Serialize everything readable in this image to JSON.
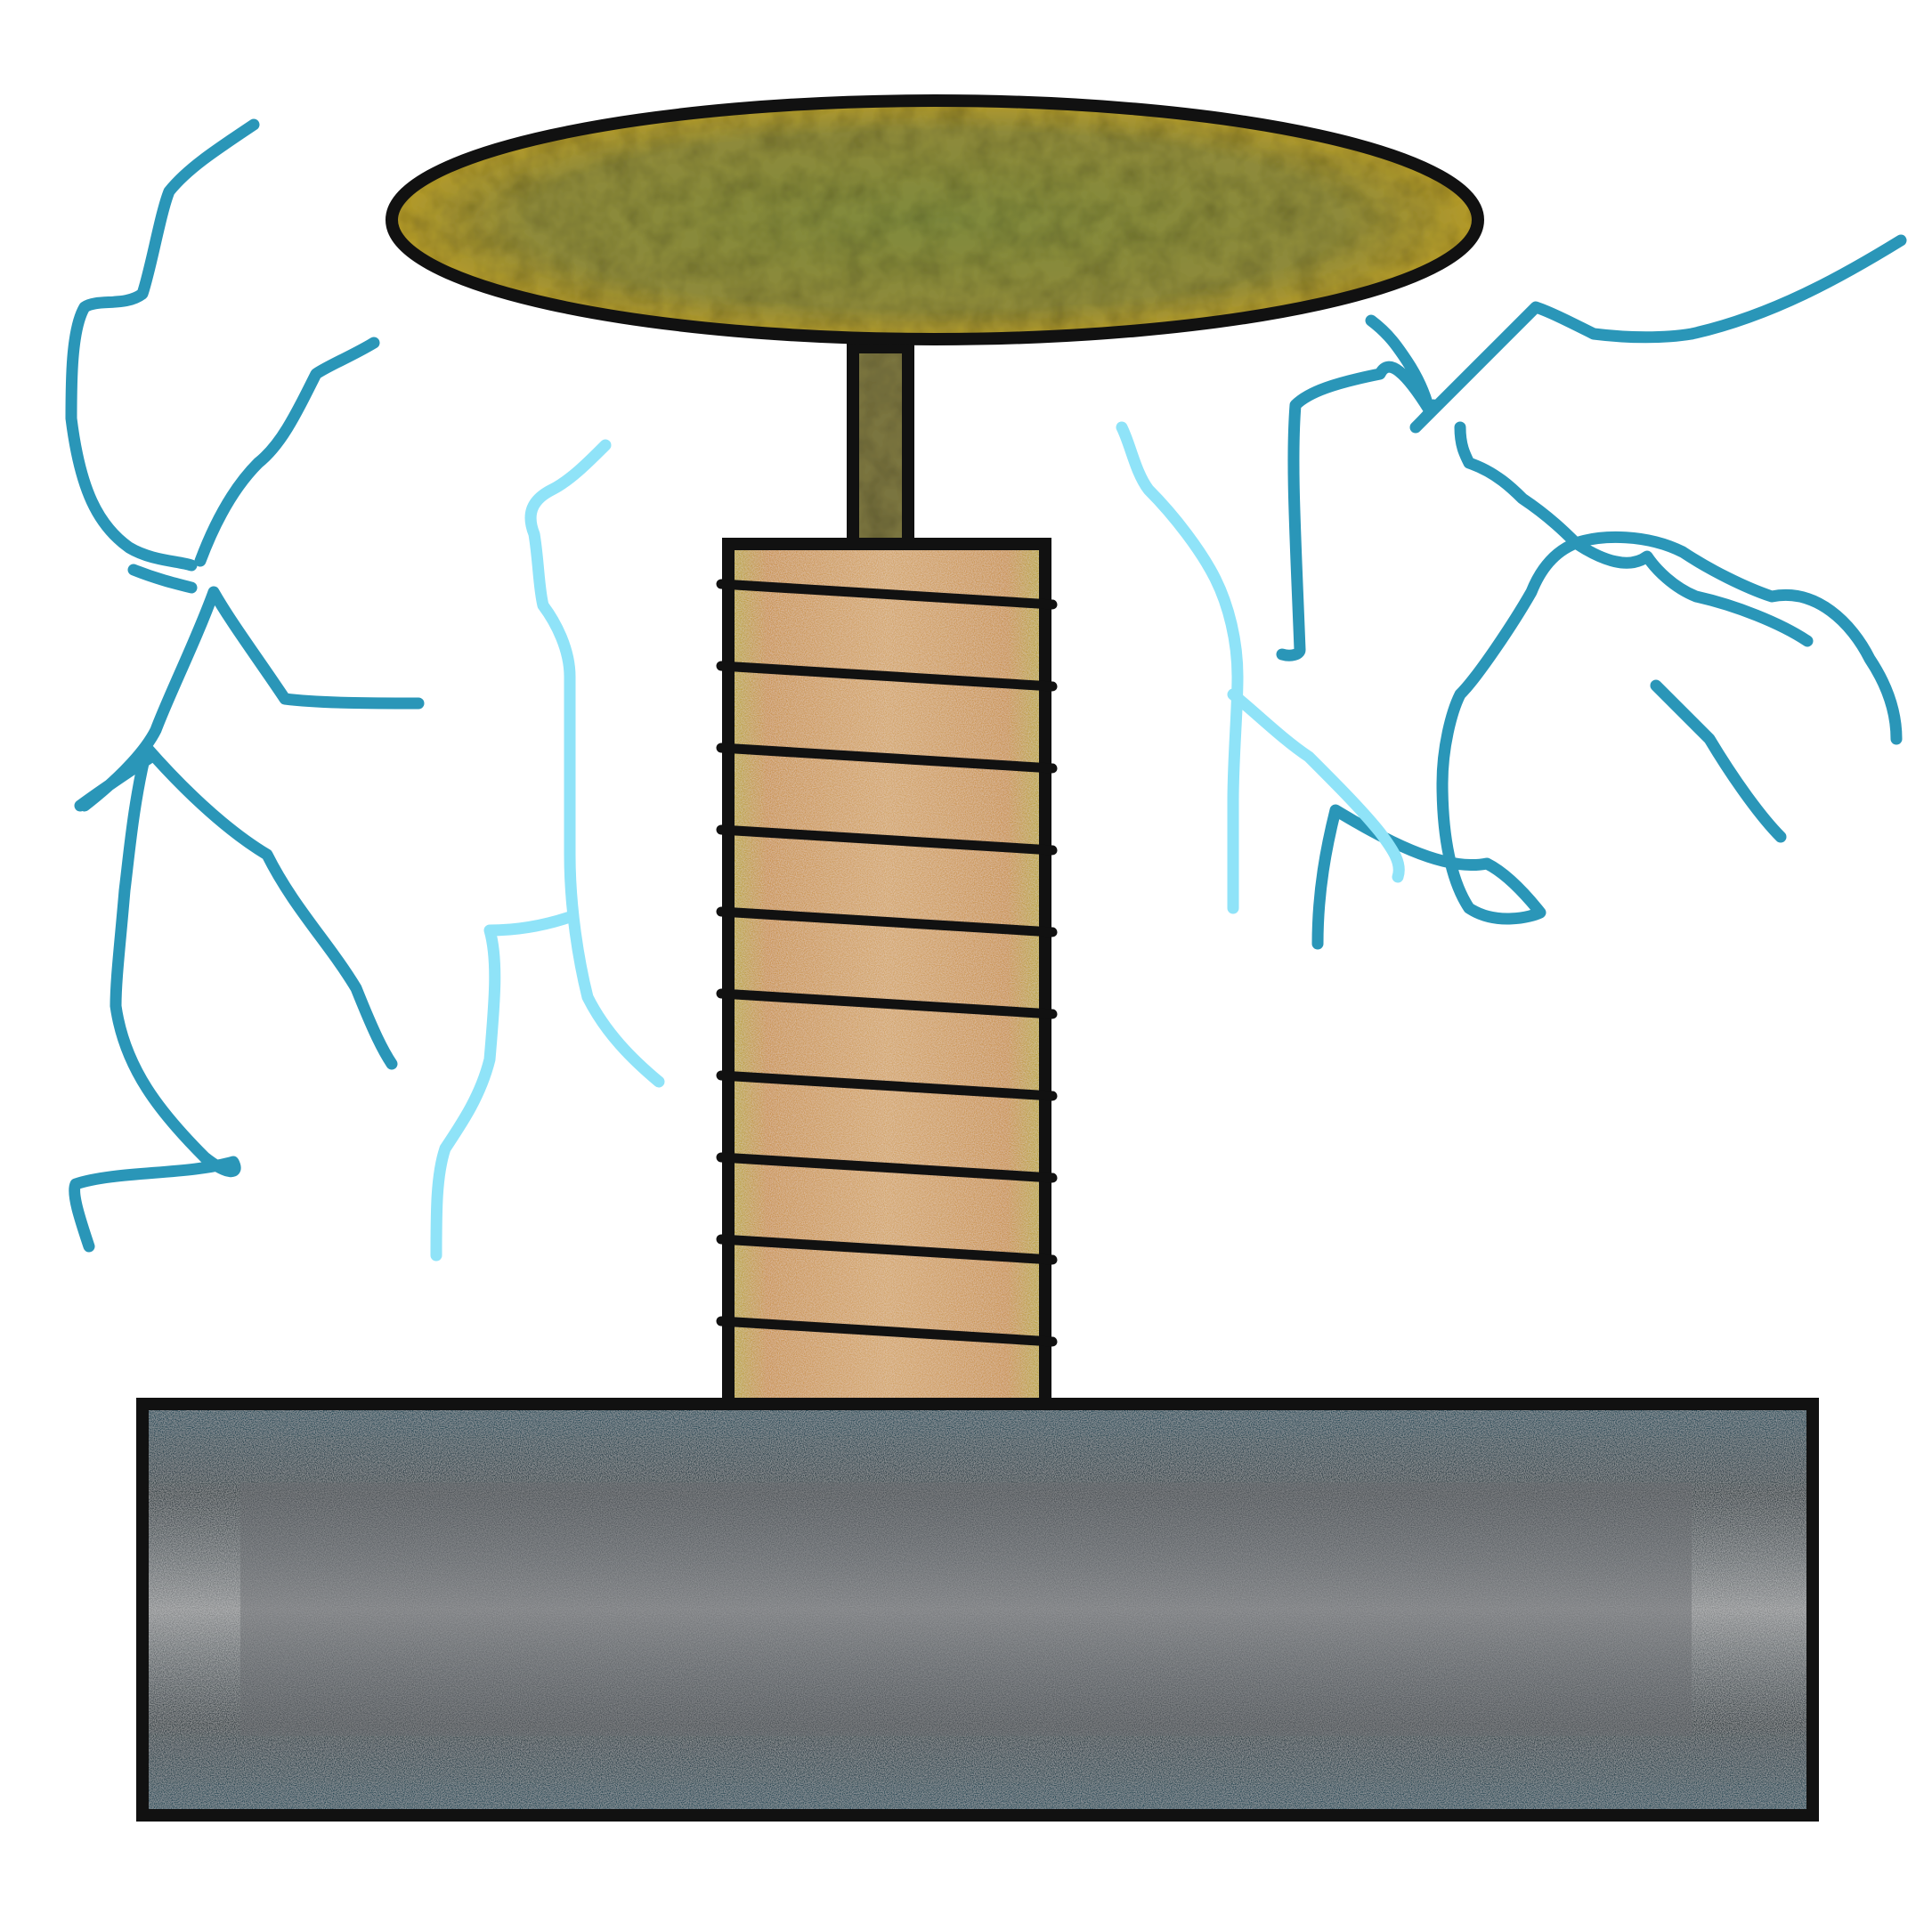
{
  "scene": {
    "subject": "tesla-coil-drawing",
    "background_color": "#ffffff"
  },
  "colors": {
    "outline": "#111111",
    "toroid_fill": "#8a8a3a",
    "toroid_rim": "#b49a2a",
    "rod_fill": "#7a7440",
    "coil_fill": "#c99a5a",
    "coil_edge": "#b8a83a",
    "base_fill": "#3a3f44",
    "base_tint": "#1f4a5a",
    "bolt_dark": "#2a96b8",
    "bolt_light": "#8fe3f8"
  },
  "parts": {
    "toroid": "top-load-toroid",
    "rod": "support-rod",
    "coil": "secondary-coil",
    "base": "base-block"
  },
  "coil": {
    "winding_count": 10
  },
  "bolts": {
    "dark_count": 4,
    "light_count": 3
  }
}
